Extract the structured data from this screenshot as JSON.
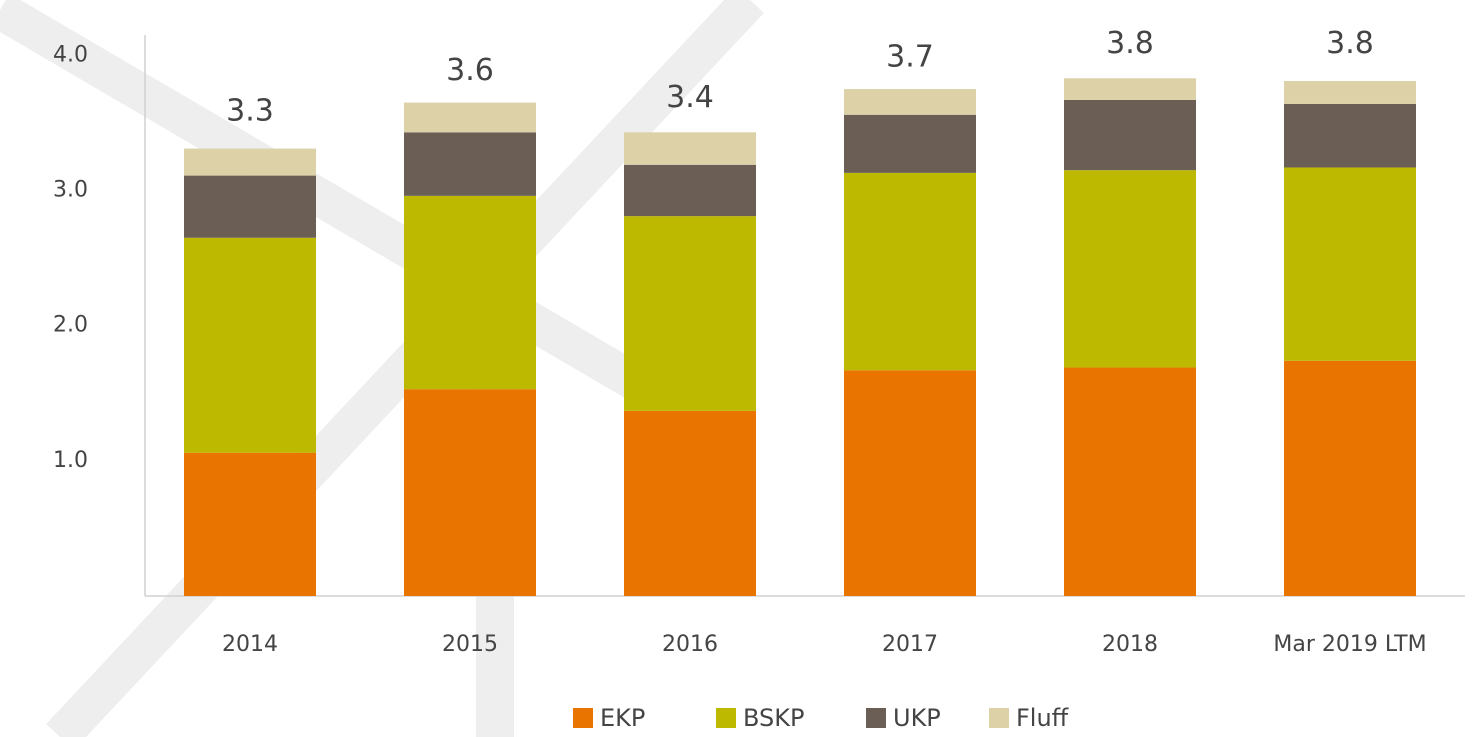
{
  "chart_data": {
    "type": "stacked_bar",
    "categories": [
      "2014",
      "2015",
      "2016",
      "2017",
      "2018",
      "Mar 2019 LTM"
    ],
    "series": [
      {
        "name": "EKP",
        "color": "#e97500",
        "values": [
          1.06,
          1.53,
          1.37,
          1.67,
          1.69,
          1.74
        ]
      },
      {
        "name": "BSKP",
        "color": "#bdb800",
        "values": [
          1.59,
          1.43,
          1.44,
          1.46,
          1.46,
          1.43
        ]
      },
      {
        "name": "UKP",
        "color": "#6b5f55",
        "values": [
          0.46,
          0.47,
          0.38,
          0.43,
          0.52,
          0.47
        ]
      },
      {
        "name": "Fluff",
        "color": "#ddd1a8",
        "values": [
          0.2,
          0.22,
          0.24,
          0.19,
          0.16,
          0.17
        ]
      }
    ],
    "totals": [
      3.3,
      3.6,
      3.4,
      3.7,
      3.8,
      3.8
    ],
    "ylim": [
      0,
      4.15
    ],
    "yticks": [
      {
        "value": 1,
        "label": "1.0"
      },
      {
        "value": 2,
        "label": "2.0"
      },
      {
        "value": 3,
        "label": "3.0"
      },
      {
        "value": 4,
        "label": "4.0"
      }
    ],
    "grid": false,
    "legend": "bottom"
  }
}
